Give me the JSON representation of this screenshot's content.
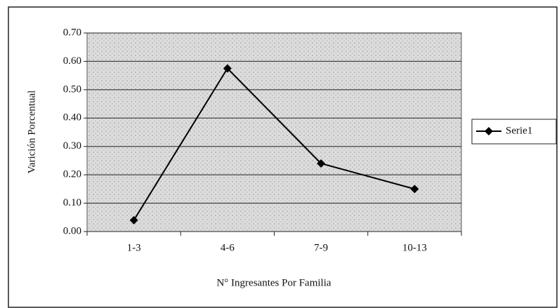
{
  "chart_data": {
    "type": "line",
    "categories": [
      "1-3",
      "4-6",
      "7-9",
      "10-13"
    ],
    "series": [
      {
        "name": "Serie1",
        "color": "#000000",
        "values": [
          0.04,
          0.575,
          0.24,
          0.15
        ]
      }
    ],
    "ylim": [
      0,
      0.7
    ],
    "yticks": [
      {
        "value": 0,
        "label": "0.00"
      },
      {
        "value": 0.1,
        "label": "0.10"
      },
      {
        "value": 0.2,
        "label": "0.20"
      },
      {
        "value": 0.3,
        "label": "0.30"
      },
      {
        "value": 0.4,
        "label": "0.40"
      },
      {
        "value": 0.5,
        "label": "0.50"
      },
      {
        "value": 0.6,
        "label": "0.60"
      },
      {
        "value": 0.7,
        "label": "0.70"
      }
    ],
    "x_label": "N° Ingresantes Por Familia",
    "y_label": "Varición Porcentual",
    "grid": true,
    "legend": "right"
  }
}
